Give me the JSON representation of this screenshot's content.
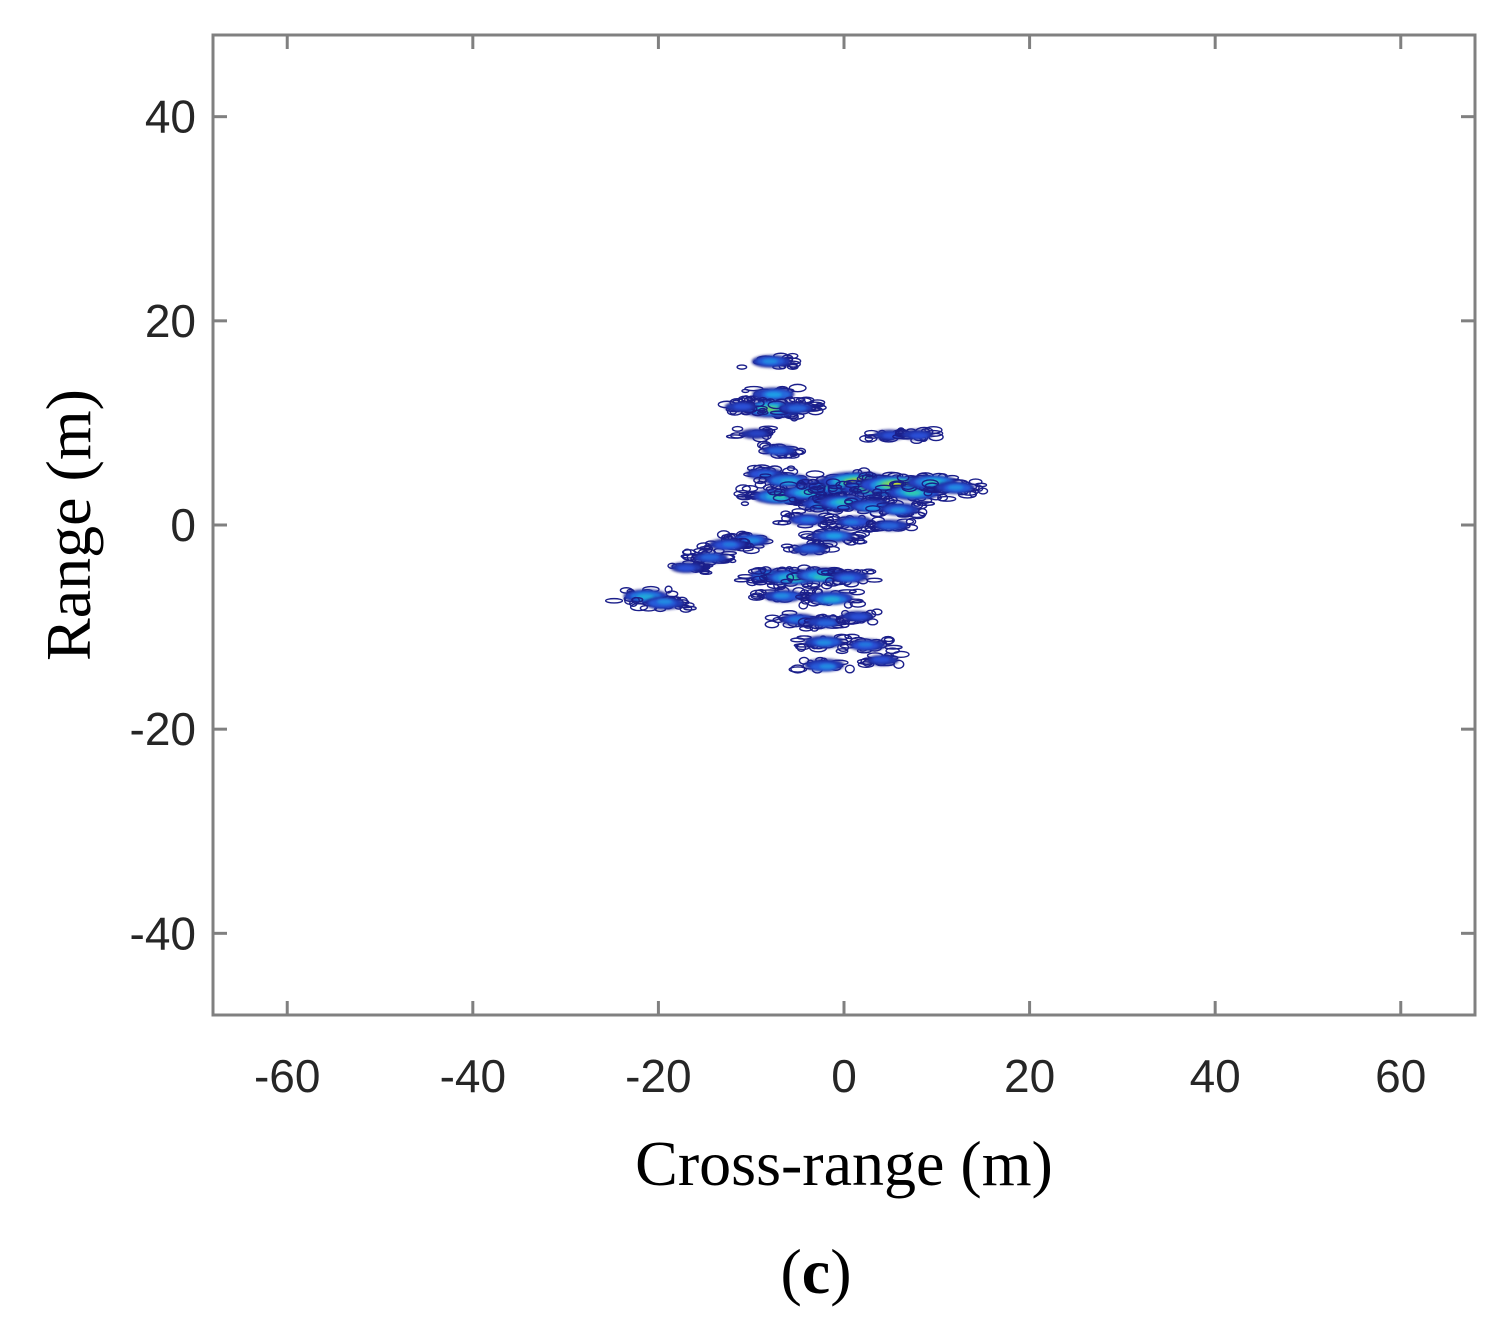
{
  "chart_data": {
    "type": "heatmap",
    "xlabel": "Cross-range (m)",
    "ylabel": "Range (m)",
    "panel_label": "(c)",
    "panel_letter": "c",
    "xlim": [
      -68,
      68
    ],
    "ylim": [
      -48,
      48
    ],
    "xticks": [
      -60,
      -40,
      -20,
      0,
      20,
      40,
      60
    ],
    "yticks": [
      -40,
      -20,
      0,
      20,
      40
    ],
    "grid": false,
    "colormap": [
      "#1b1f8a",
      "#2a4fd6",
      "#1e9ee6",
      "#2fc9b0",
      "#a6d73a",
      "#f3e51b"
    ],
    "intensity_range": [
      0,
      1
    ],
    "scatterers": [
      {
        "x": -8.0,
        "y": 16.0,
        "v": 0.35
      },
      {
        "x": -7.5,
        "y": 12.8,
        "v": 0.4
      },
      {
        "x": -8.0,
        "y": 11.4,
        "v": 0.7
      },
      {
        "x": -11.0,
        "y": 11.5,
        "v": 0.2
      },
      {
        "x": -5.0,
        "y": 11.5,
        "v": 0.25
      },
      {
        "x": -9.5,
        "y": 9.0,
        "v": 0.15
      },
      {
        "x": -7.0,
        "y": 7.3,
        "v": 0.25
      },
      {
        "x": -8.5,
        "y": 5.0,
        "v": 0.3
      },
      {
        "x": 5.0,
        "y": 8.8,
        "v": 0.2
      },
      {
        "x": 8.0,
        "y": 8.8,
        "v": 0.2
      },
      {
        "x": -6.0,
        "y": 4.3,
        "v": 0.45
      },
      {
        "x": -7.0,
        "y": 2.8,
        "v": 0.6
      },
      {
        "x": -4.0,
        "y": 3.2,
        "v": 0.55
      },
      {
        "x": -1.0,
        "y": 3.8,
        "v": 0.6
      },
      {
        "x": 1.5,
        "y": 4.2,
        "v": 0.92
      },
      {
        "x": 3.5,
        "y": 3.6,
        "v": 0.85
      },
      {
        "x": 5.5,
        "y": 4.0,
        "v": 0.88
      },
      {
        "x": 7.5,
        "y": 3.2,
        "v": 0.6
      },
      {
        "x": 9.5,
        "y": 4.2,
        "v": 0.55
      },
      {
        "x": 12.0,
        "y": 3.6,
        "v": 0.35
      },
      {
        "x": -2.0,
        "y": 2.0,
        "v": 0.5
      },
      {
        "x": 0.0,
        "y": 2.2,
        "v": 0.55
      },
      {
        "x": 3.0,
        "y": 1.8,
        "v": 0.4
      },
      {
        "x": 6.0,
        "y": 1.5,
        "v": 0.35
      },
      {
        "x": -4.0,
        "y": 0.5,
        "v": 0.3
      },
      {
        "x": 1.0,
        "y": 0.3,
        "v": 0.3
      },
      {
        "x": 5.0,
        "y": 0.0,
        "v": 0.25
      },
      {
        "x": -1.0,
        "y": -1.0,
        "v": 0.4
      },
      {
        "x": -3.5,
        "y": -2.3,
        "v": 0.25
      },
      {
        "x": -10.0,
        "y": -1.5,
        "v": 0.35
      },
      {
        "x": -12.5,
        "y": -2.0,
        "v": 0.3
      },
      {
        "x": -14.5,
        "y": -3.2,
        "v": 0.25
      },
      {
        "x": -17.0,
        "y": -4.2,
        "v": 0.2
      },
      {
        "x": -8.0,
        "y": -5.0,
        "v": 0.4
      },
      {
        "x": -5.5,
        "y": -5.2,
        "v": 0.6
      },
      {
        "x": -2.5,
        "y": -5.0,
        "v": 0.55
      },
      {
        "x": 0.5,
        "y": -5.1,
        "v": 0.3
      },
      {
        "x": -6.5,
        "y": -7.0,
        "v": 0.35
      },
      {
        "x": -1.5,
        "y": -7.2,
        "v": 0.45
      },
      {
        "x": -21.5,
        "y": -7.0,
        "v": 0.45
      },
      {
        "x": -19.5,
        "y": -7.6,
        "v": 0.35
      },
      {
        "x": -5.0,
        "y": -9.2,
        "v": 0.3
      },
      {
        "x": -2.0,
        "y": -9.6,
        "v": 0.25
      },
      {
        "x": 1.5,
        "y": -9.0,
        "v": 0.2
      },
      {
        "x": -2.0,
        "y": -11.5,
        "v": 0.35
      },
      {
        "x": 2.5,
        "y": -11.8,
        "v": 0.3
      },
      {
        "x": 4.0,
        "y": -13.2,
        "v": 0.2
      },
      {
        "x": -2.0,
        "y": -13.8,
        "v": 0.35
      }
    ]
  }
}
